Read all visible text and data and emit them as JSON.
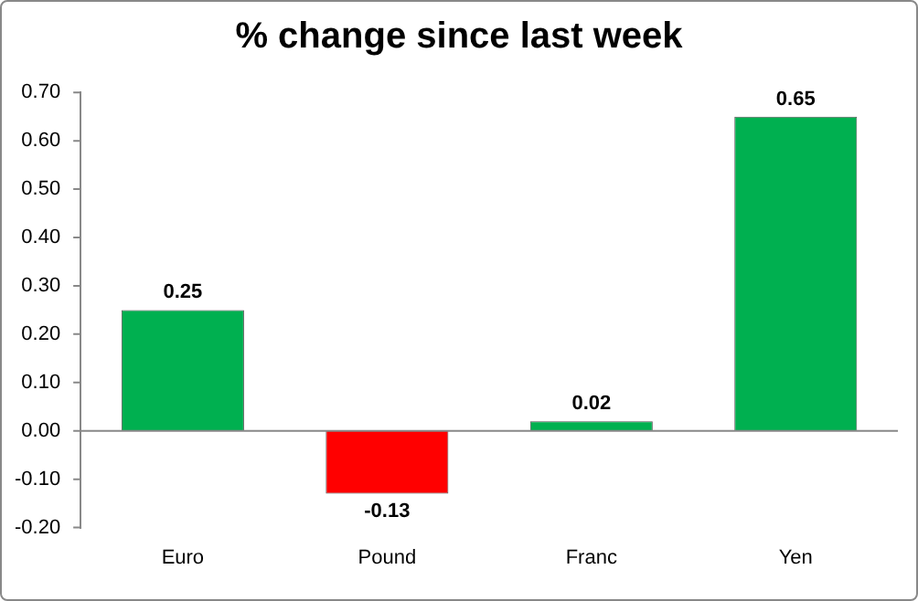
{
  "chart_data": {
    "type": "bar",
    "title": "% change since last week",
    "categories": [
      "Euro",
      "Pound",
      "Franc",
      "Yen"
    ],
    "values": [
      0.25,
      -0.13,
      0.02,
      0.65
    ],
    "colors": [
      "#00b050",
      "#ff0000",
      "#00b050",
      "#00b050"
    ],
    "ylim": [
      -0.2,
      0.7
    ],
    "yticks": [
      {
        "value": -0.2,
        "label": "-0.20"
      },
      {
        "value": -0.1,
        "label": "-0.10"
      },
      {
        "value": 0,
        "label": "0.00"
      },
      {
        "value": 0.1,
        "label": "0.10"
      },
      {
        "value": 0.2,
        "label": "0.20"
      },
      {
        "value": 0.3,
        "label": "0.30"
      },
      {
        "value": 0.4,
        "label": "0.40"
      },
      {
        "value": 0.5,
        "label": "0.50"
      },
      {
        "value": 0.6,
        "label": "0.60"
      },
      {
        "value": 0.7,
        "label": "0.70"
      }
    ],
    "data_labels": true,
    "legend": false
  }
}
